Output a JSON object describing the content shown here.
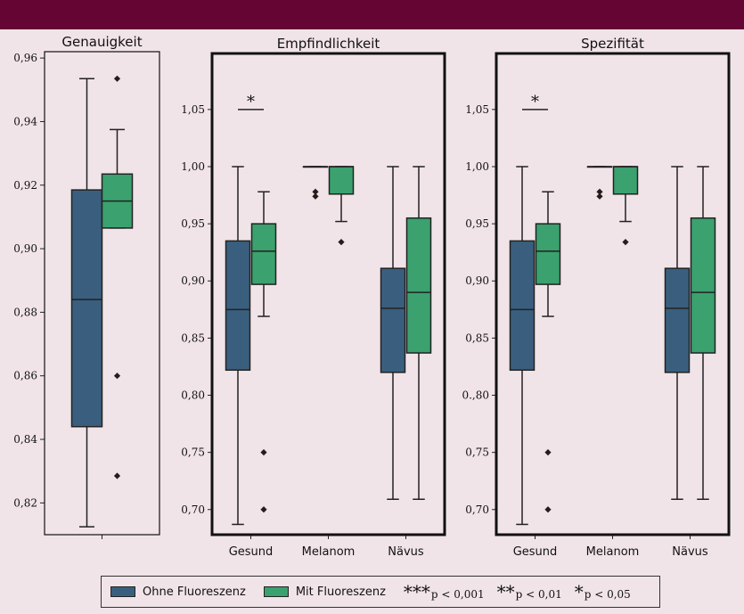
{
  "colors": {
    "header": "#640533",
    "ohne": "#3a5f7e",
    "mit": "#3aa16f",
    "background": "#f1e4e8"
  },
  "legend": {
    "ohne_label": "Ohne Fluoreszenz",
    "mit_label": "Mit Fluoreszenz",
    "sig": [
      {
        "stars": "***",
        "label": "p < 0,001"
      },
      {
        "stars": "**",
        "label": "p < 0,01"
      },
      {
        "stars": "*",
        "label": "p < 0,05"
      }
    ]
  },
  "chart_data": [
    {
      "type": "box",
      "title": "Genauigkeit",
      "ylim": [
        0.81,
        0.962
      ],
      "yticks": [
        "0,96",
        "0,94",
        "0,92",
        "0,90",
        "0,88",
        "0,86",
        "0,84",
        "0,82"
      ],
      "ytick_values": [
        0.96,
        0.94,
        0.92,
        0.9,
        0.88,
        0.86,
        0.84,
        0.82
      ],
      "categories": [
        ""
      ],
      "bold_frame": false,
      "series": [
        {
          "name": "Ohne Fluoreszenz",
          "boxes": [
            {
              "whisker_low": 0.8125,
              "q1": 0.844,
              "median": 0.884,
              "q3": 0.9185,
              "whisker_high": 0.9535,
              "outliers": []
            }
          ]
        },
        {
          "name": "Mit Fluoreszenz",
          "boxes": [
            {
              "whisker_low": 0.9065,
              "q1": 0.9065,
              "median": 0.915,
              "q3": 0.9235,
              "whisker_high": 0.9375,
              "outliers": [
                0.9535,
                0.86,
                0.8285
              ]
            }
          ]
        }
      ],
      "annotations": []
    },
    {
      "type": "box",
      "title": "Empfindlichkeit",
      "ylim": [
        0.678,
        1.099
      ],
      "yticks": [
        "1,05",
        "1,00",
        "0,95",
        "0,90",
        "0,85",
        "0,80",
        "0,75",
        "0,70"
      ],
      "ytick_values": [
        1.05,
        1.0,
        0.95,
        0.9,
        0.85,
        0.8,
        0.75,
        0.7
      ],
      "categories": [
        "Gesund",
        "Melanom",
        "Nävus"
      ],
      "bold_frame": true,
      "series": [
        {
          "name": "Ohne Fluoreszenz",
          "boxes": [
            {
              "whisker_low": 0.687,
              "q1": 0.822,
              "median": 0.875,
              "q3": 0.935,
              "whisker_high": 1.0,
              "outliers": []
            },
            {
              "whisker_low": 1.0,
              "q1": 1.0,
              "median": 1.0,
              "q3": 1.0,
              "whisker_high": 1.0,
              "outliers": [
                0.978,
                0.974
              ]
            },
            {
              "whisker_low": 0.709,
              "q1": 0.82,
              "median": 0.876,
              "q3": 0.911,
              "whisker_high": 1.0,
              "outliers": []
            }
          ]
        },
        {
          "name": "Mit Fluoreszenz",
          "boxes": [
            {
              "whisker_low": 0.869,
              "q1": 0.897,
              "median": 0.926,
              "q3": 0.95,
              "whisker_high": 0.978,
              "outliers": [
                0.75,
                0.7
              ]
            },
            {
              "whisker_low": 0.952,
              "q1": 0.976,
              "median": 1.0,
              "q3": 1.0,
              "whisker_high": 1.0,
              "outliers": [
                0.934
              ]
            },
            {
              "whisker_low": 0.709,
              "q1": 0.837,
              "median": 0.89,
              "q3": 0.955,
              "whisker_high": 1.0,
              "outliers": []
            }
          ]
        }
      ],
      "annotations": [
        {
          "text": "*",
          "category": "Gesund",
          "y": 1.05
        }
      ]
    },
    {
      "type": "box",
      "title": "Spezifität",
      "ylim": [
        0.678,
        1.099
      ],
      "yticks": [
        "1,05",
        "1,00",
        "0,95",
        "0,90",
        "0,85",
        "0.,80",
        "0,75",
        "0,70"
      ],
      "ytick_values": [
        1.05,
        1.0,
        0.95,
        0.9,
        0.85,
        0.8,
        0.75,
        0.7
      ],
      "categories": [
        "Gesund",
        "Melanom",
        "Nävus"
      ],
      "bold_frame": true,
      "series": [
        {
          "name": "Ohne Fluoreszenz",
          "boxes": [
            {
              "whisker_low": 0.687,
              "q1": 0.822,
              "median": 0.875,
              "q3": 0.935,
              "whisker_high": 1.0,
              "outliers": []
            },
            {
              "whisker_low": 1.0,
              "q1": 1.0,
              "median": 1.0,
              "q3": 1.0,
              "whisker_high": 1.0,
              "outliers": [
                0.978,
                0.974
              ]
            },
            {
              "whisker_low": 0.709,
              "q1": 0.82,
              "median": 0.876,
              "q3": 0.911,
              "whisker_high": 1.0,
              "outliers": []
            }
          ]
        },
        {
          "name": "Mit Fluoreszenz",
          "boxes": [
            {
              "whisker_low": 0.869,
              "q1": 0.897,
              "median": 0.926,
              "q3": 0.95,
              "whisker_high": 0.978,
              "outliers": [
                0.75,
                0.7
              ]
            },
            {
              "whisker_low": 0.952,
              "q1": 0.976,
              "median": 1.0,
              "q3": 1.0,
              "whisker_high": 1.0,
              "outliers": [
                0.934
              ]
            },
            {
              "whisker_low": 0.709,
              "q1": 0.837,
              "median": 0.89,
              "q3": 0.955,
              "whisker_high": 1.0,
              "outliers": []
            }
          ]
        }
      ],
      "annotations": [
        {
          "text": "*",
          "category": "Gesund",
          "y": 1.05
        }
      ]
    }
  ]
}
